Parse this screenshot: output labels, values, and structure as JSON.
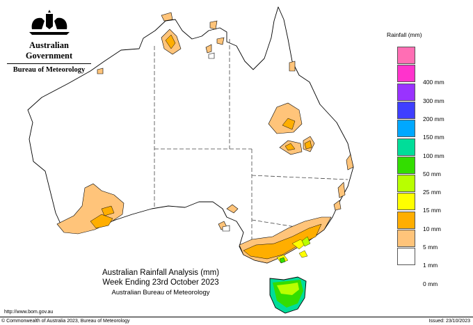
{
  "logo": {
    "government": "Australian Government",
    "bureau": "Bureau of Meteorology"
  },
  "legend": {
    "title": "Rainfall (mm)",
    "items": [
      {
        "label": "",
        "color": "#ff6eb4"
      },
      {
        "label": "400 mm",
        "color": "#ff33cc"
      },
      {
        "label": "300 mm",
        "color": "#9933ff"
      },
      {
        "label": "200 mm",
        "color": "#3f3fff"
      },
      {
        "label": "150 mm",
        "color": "#00a8ff"
      },
      {
        "label": "100 mm",
        "color": "#00dd99"
      },
      {
        "label": "50 mm",
        "color": "#33dd00"
      },
      {
        "label": "25 mm",
        "color": "#b8ff00"
      },
      {
        "label": "15 mm",
        "color": "#ffff00"
      },
      {
        "label": "10 mm",
        "color": "#ffae00"
      },
      {
        "label": "5 mm",
        "color": "#ffc47a"
      },
      {
        "label": "1 mm",
        "color": "#ffffff"
      },
      {
        "label": "0 mm",
        "color": ""
      }
    ]
  },
  "title": {
    "line1": "Australian Rainfall Analysis (mm)",
    "line2": "Week Ending 23rd October 2023",
    "line3": "Australian Bureau of Meteorology"
  },
  "footer": {
    "url": "http://www.bom.gov.au",
    "copyright": "© Commonwealth of Australia 2023, Bureau of Meteorology",
    "issued": "Issued: 23/10/2023"
  }
}
